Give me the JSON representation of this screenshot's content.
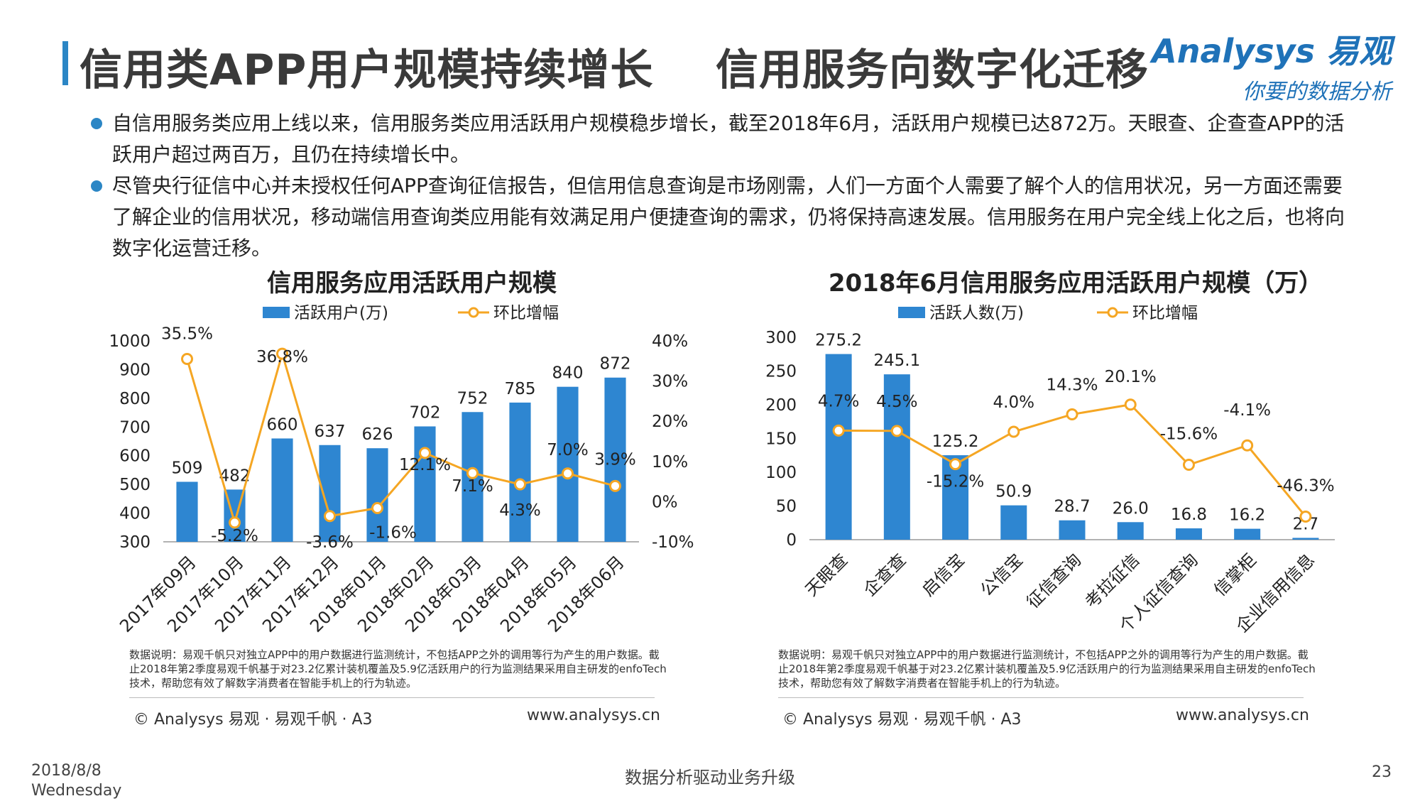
{
  "header": {
    "title": "信用类APP用户规模持续增长    信用服务向数字化迁移",
    "logo_main": "Analysys 易观",
    "logo_sub": "你要的数据分析"
  },
  "bullets": [
    "自信用服务类应用上线以来，信用服务类应用活跃用户规模稳步增长，截至2018年6月，活跃用户规模已达872万。天眼查、企查查APP的活跃用户超过两百万，且仍在持续增长中。",
    "尽管央行征信中心并未授权任何APP查询征信报告，但信用信息查询是市场刚需，人们一方面个人需要了解个人的信用状况，另一方面还需要了解企业的信用状况，移动端信用查询类应用能有效满足用户便捷查询的需求，仍将保持高速发展。信用服务在用户完全线上化之后，也将向数字化运营迁移。"
  ],
  "chart_data": [
    {
      "type": "bar+line",
      "title": "信用服务应用活跃用户规模",
      "categories": [
        "2017年09月",
        "2017年10月",
        "2017年11月",
        "2017年12月",
        "2018年01月",
        "2018年02月",
        "2018年03月",
        "2018年04月",
        "2018年05月",
        "2018年06月"
      ],
      "series": [
        {
          "name": "活跃用户(万)",
          "kind": "bar",
          "axis": "left",
          "values": [
            509,
            482,
            660,
            637,
            626,
            702,
            752,
            785,
            840,
            872
          ],
          "labels": [
            "509",
            "482",
            "660",
            "637",
            "626",
            "702",
            "752",
            "785",
            "840",
            "872"
          ]
        },
        {
          "name": "环比增幅",
          "kind": "line",
          "axis": "right",
          "values": [
            35.5,
            -5.2,
            36.8,
            -3.6,
            -1.6,
            12.1,
            7.1,
            4.3,
            7.0,
            3.9
          ],
          "labels": [
            "35.5%",
            "-5.2%",
            "36.8%",
            "-3.6%",
            "-1.6%",
            "12.1%",
            "7.1%",
            "4.3%",
            "7.0%",
            "3.9%"
          ]
        }
      ],
      "ylim_left": [
        300,
        1000
      ],
      "yticks_left": [
        "300",
        "400",
        "500",
        "600",
        "700",
        "800",
        "900",
        "1000"
      ],
      "ylim_right": [
        -10,
        40
      ],
      "yticks_right": [
        "-10%",
        "0%",
        "10%",
        "20%",
        "30%",
        "40%"
      ],
      "colors": {
        "bar": "#2e86d1",
        "line": "#f5a623"
      }
    },
    {
      "type": "bar+line",
      "title": "2018年6月信用服务应用活跃用户规模（万）",
      "categories": [
        "天眼查",
        "企查查",
        "启信宝",
        "公信宝",
        "征信查询",
        "考拉征信",
        "个人征信查询",
        "信掌柜",
        "企业信用信息"
      ],
      "series": [
        {
          "name": "活跃人数(万)",
          "kind": "bar",
          "axis": "left",
          "values": [
            275.2,
            245.1,
            125.2,
            50.9,
            28.7,
            26.0,
            16.8,
            16.2,
            2.7
          ],
          "labels": [
            "275.2",
            "245.1",
            "125.2",
            "50.9",
            "28.7",
            "26.0",
            "16.8",
            "16.2",
            "2.7"
          ]
        },
        {
          "name": "环比增幅",
          "kind": "line",
          "axis": "right",
          "values": [
            4.7,
            4.5,
            -15.2,
            4.0,
            14.3,
            20.1,
            -15.6,
            -4.1,
            -46.3
          ],
          "labels": [
            "4.7%",
            "4.5%",
            "-15.2%",
            "4.0%",
            "14.3%",
            "20.1%",
            "-15.6%",
            "-4.1%",
            "-46.3%"
          ]
        }
      ],
      "ylim_left": [
        0,
        300
      ],
      "yticks_left": [
        "0",
        "50",
        "100",
        "150",
        "200",
        "250",
        "300"
      ],
      "ylim_right": [
        -60,
        60
      ],
      "colors": {
        "bar": "#2e86d1",
        "line": "#f5a623"
      }
    }
  ],
  "notes": "数据说明：易观千帆只对独立APP中的用户数据进行监测统计，不包括APP之外的调用等行为产生的用户数据。截止2018年第2季度易观千帆基于对23.2亿累计装机覆盖及5.9亿活跃用户的行为监测结果采用自主研发的enfoTech技术，帮助您有效了解数字消费者在智能手机上的行为轨迹。",
  "footer": {
    "copyright": "© Analysys 易观 · 易观千帆 · A3",
    "website": "www.analysys.cn",
    "date_line1": "2018/8/8",
    "date_line2": "Wednesday",
    "slogan": "数据分析驱动业务升级",
    "page": "23"
  }
}
